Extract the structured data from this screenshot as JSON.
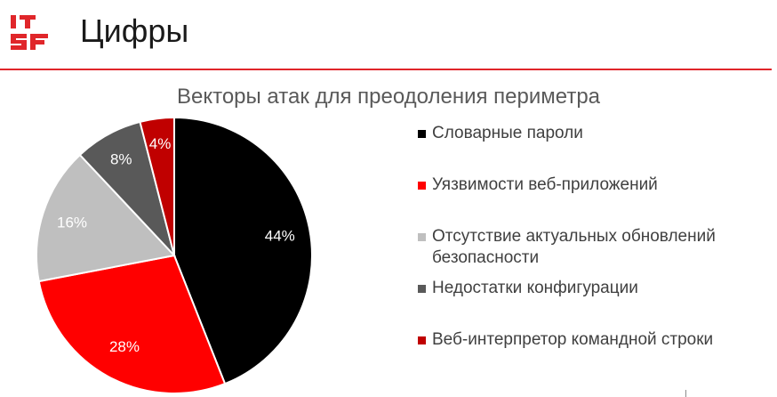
{
  "header": {
    "logo_text": "ITSF",
    "title": "Цифры",
    "rule_color": "#e0262a"
  },
  "chart_data": {
    "type": "pie",
    "title": "Векторы атак для преодоления периметра",
    "series": [
      {
        "label": "Словарные пароли",
        "value": 44,
        "display": "44%",
        "color": "#000000",
        "label_color": "#ffffff"
      },
      {
        "label": "Уязвимости веб-приложений",
        "value": 28,
        "display": "28%",
        "color": "#ff0000",
        "label_color": "#ffffff"
      },
      {
        "label": "Отсутствие актуальных обновлений безопасности",
        "value": 16,
        "display": "16%",
        "color": "#bfbfbf",
        "label_color": "#ffffff"
      },
      {
        "label": "Недостатки конфигурации",
        "value": 8,
        "display": "8%",
        "color": "#595959",
        "label_color": "#ffffff"
      },
      {
        "label": "Веб-интерпретор командной строки",
        "value": 4,
        "display": "4%",
        "color": "#c00000",
        "label_color": "#ffffff"
      }
    ],
    "legend_position": "right",
    "start_angle": "top, clockwise"
  }
}
